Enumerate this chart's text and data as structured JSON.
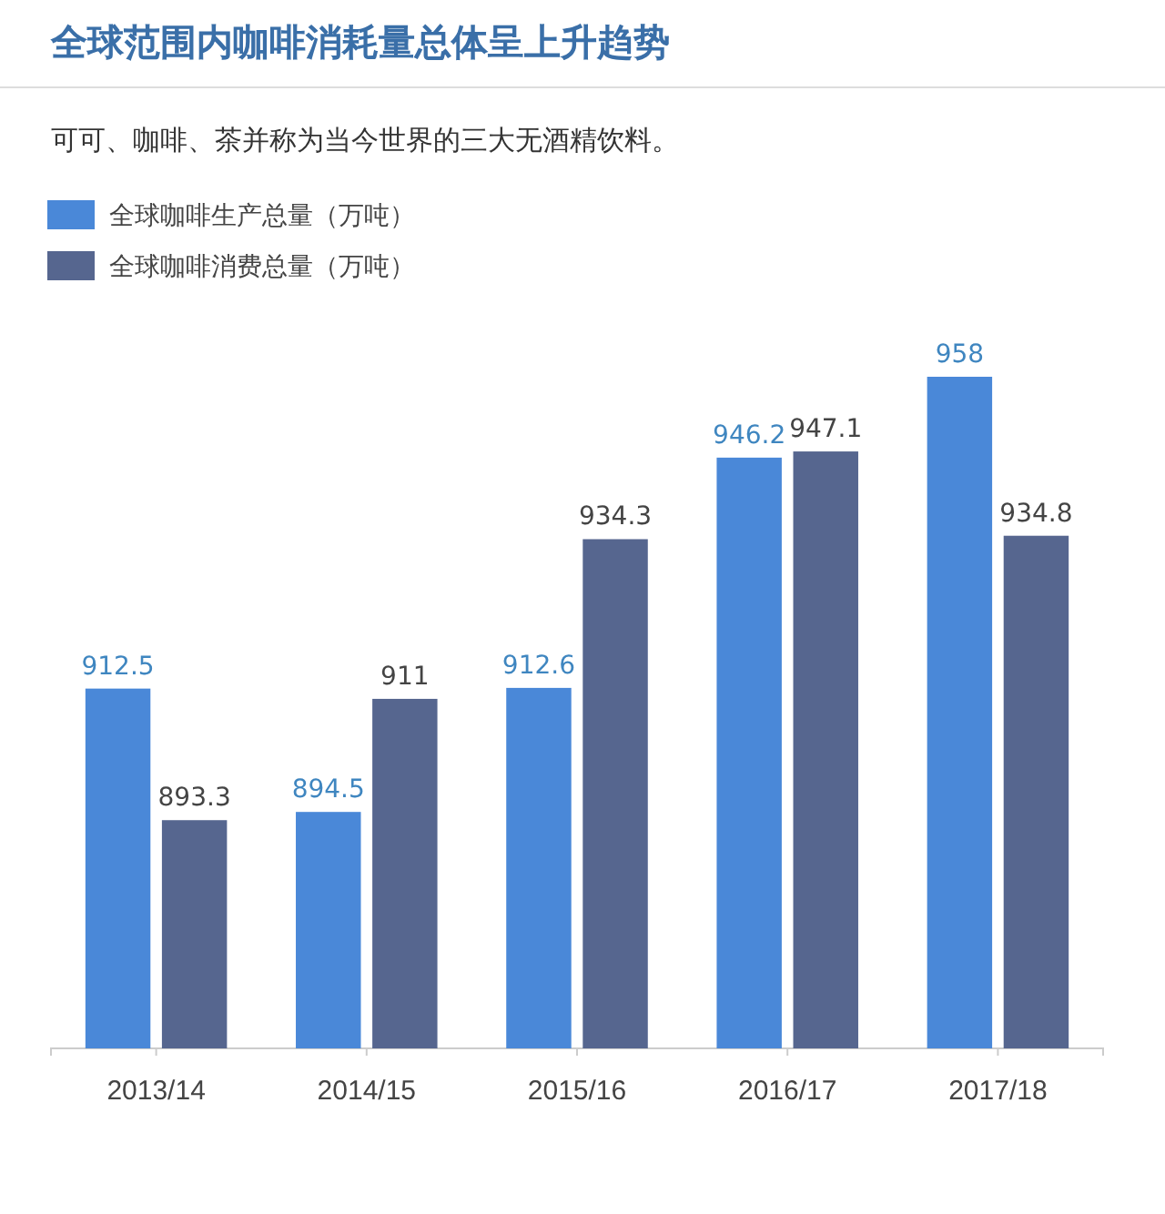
{
  "chart_data": {
    "type": "bar",
    "title": "全球范围内咖啡消耗量总体呈上升趋势",
    "subtitle": "可可、咖啡、茶并称为当今世界的三大无酒精饮料。",
    "categories": [
      "2013/14",
      "2014/15",
      "2015/16",
      "2016/17",
      "2017/18"
    ],
    "series": [
      {
        "name": "全球咖啡生产总量（万吨）",
        "color": "#4a88d8",
        "values": [
          912.5,
          894.5,
          912.6,
          946.2,
          958
        ]
      },
      {
        "name": "全球咖啡消费总量（万吨）",
        "color": "#56668f",
        "values": [
          893.3,
          911,
          934.3,
          947.1,
          934.8
        ]
      }
    ],
    "ylim": [
      860,
      958
    ],
    "data_labels": true,
    "legend": "top left"
  }
}
